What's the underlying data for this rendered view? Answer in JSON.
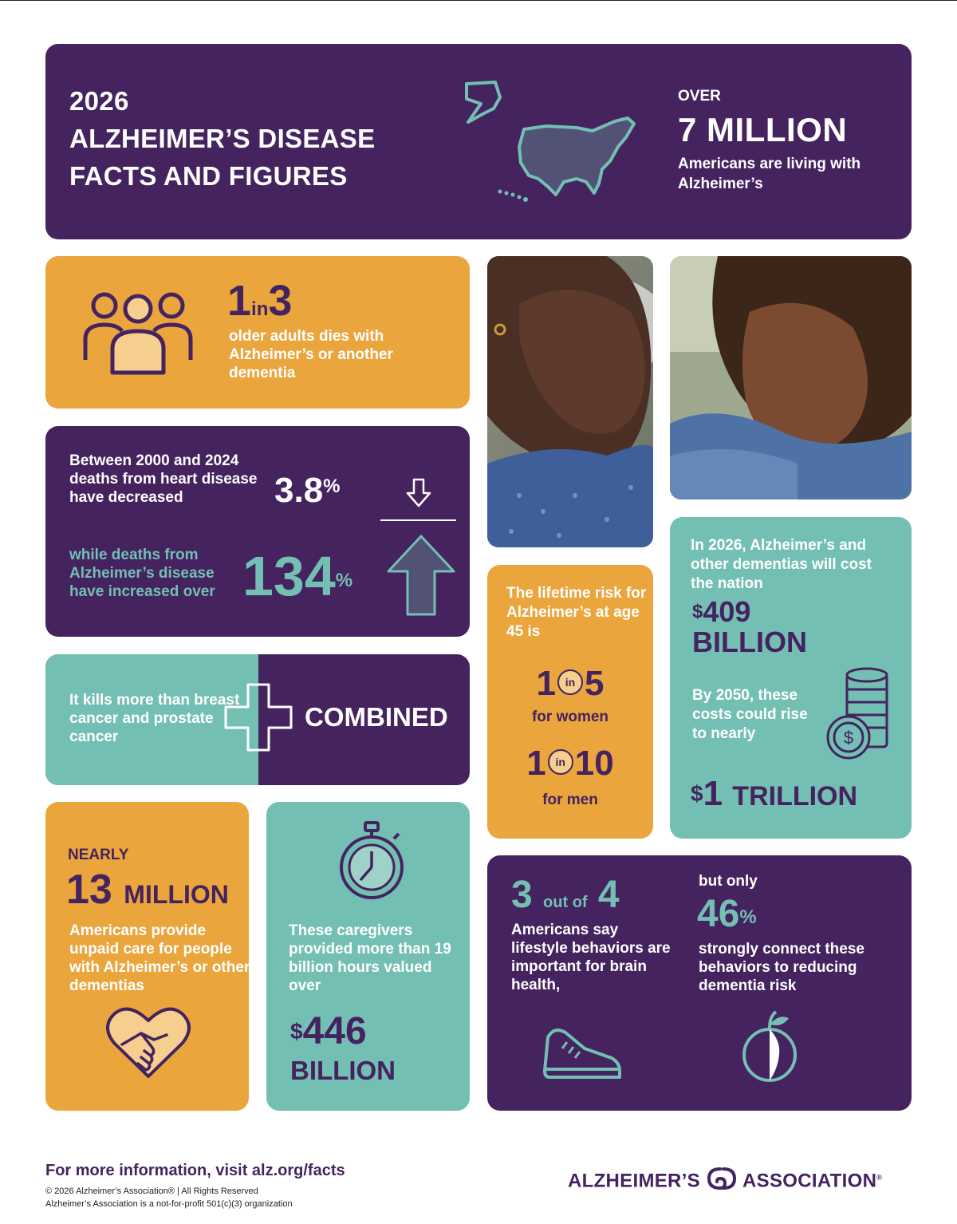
{
  "header": {
    "year": "2026",
    "title_line1": "ALZHEIMER’S DISEASE",
    "title_line2": "FACTS AND FIGURES",
    "over": "OVER",
    "big_stat": "7 MILLION",
    "sub": "Americans are living with Alzheimer’s"
  },
  "one_in_three": {
    "num1": "1",
    "in": "in",
    "num2": "3",
    "text": "older adults dies with Alzheimer’s or another dementia"
  },
  "heart_vs_alz": {
    "heart_text": "Between 2000 and 2024 deaths from heart disease have decreased",
    "heart_value": "3.8",
    "heart_unit": "%",
    "alz_text": "while deaths from Alzheimer’s disease have increased over",
    "alz_value": "134",
    "alz_unit": "%"
  },
  "combined": {
    "text": "It kills more than breast cancer and prostate cancer",
    "word": "COMBINED"
  },
  "lifetime_risk": {
    "text": "The lifetime risk for Alzheimer’s at age 45 is",
    "women_a": "1",
    "women_in": "in",
    "women_b": "5",
    "women_label": "for women",
    "men_a": "1",
    "men_in": "in",
    "men_b": "10",
    "men_label": "for men"
  },
  "cost": {
    "text": "In 2026, Alzheimer’s and other dementias will cost the nation",
    "dollar": "$",
    "amount": "409",
    "amount_unit": "BILLION",
    "future_text": "By 2050, these costs could rise to nearly",
    "future_dollar": "$",
    "future_amount": "1",
    "future_unit": "TRILLION"
  },
  "caregivers_count": {
    "nearly": "NEARLY",
    "num": "13",
    "unit": "MILLION",
    "text": "Americans provide unpaid care for people with Alzheimer’s or other dementias"
  },
  "caregivers_value": {
    "text": "These caregivers provided more than 19 billion hours valued over",
    "dollar": "$",
    "amount": "446",
    "unit": "BILLION"
  },
  "lifestyle": {
    "num1": "3",
    "outof": "out of",
    "num2": "4",
    "text": "Americans say lifestyle behaviors are important for brain health,",
    "but_only": "but only",
    "pct_value": "46",
    "pct_unit": "%",
    "connect_text": "strongly connect these behaviors to reducing dementia risk"
  },
  "footer": {
    "more_info": "For more information, visit alz.org/facts",
    "copyright": "© 2026 Alzheimer’s Association® | All Rights Reserved",
    "nonprofit": "Alzheimer’s Association is a not-for-profit 501(c)(3) organization",
    "logo_left": "ALZHEIMER’S",
    "logo_right": "ASSOCIATION",
    "logo_mark": "®"
  },
  "colors": {
    "purple": "#44235f",
    "orange": "#eba53d",
    "teal": "#74bfb3",
    "peach": "#f6ce8e"
  },
  "icons": [
    "us-map-icon",
    "people-group-icon",
    "down-arrow-icon",
    "up-arrow-icon",
    "plus-icon",
    "coin-stack-icon",
    "stopwatch-icon",
    "heart-handshake-icon",
    "sneaker-icon",
    "apple-icon",
    "alz-logo-icon"
  ]
}
